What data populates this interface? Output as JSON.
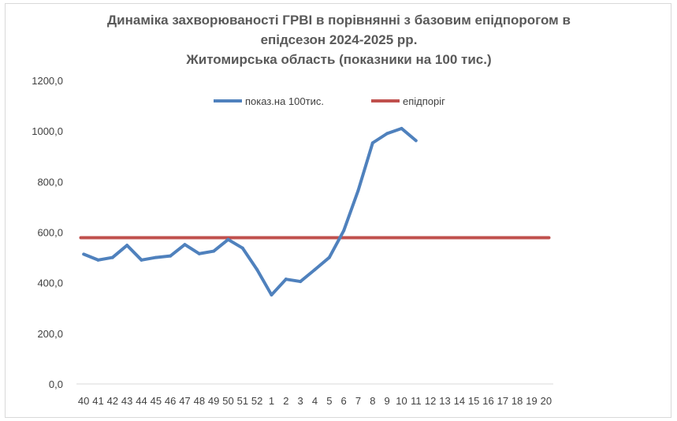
{
  "chart_data": {
    "type": "line",
    "title_lines": [
      "Динаміка захворюваності ГРВІ в порівнянні з базовим епідпорогом в",
      "епідсезон 2024-2025 рр.",
      "Житомирська область (показники на 100 тис.)"
    ],
    "xlabel": "",
    "ylabel": "",
    "categories": [
      "40",
      "41",
      "42",
      "43",
      "44",
      "45",
      "46",
      "47",
      "48",
      "49",
      "50",
      "51",
      "52",
      "1",
      "2",
      "3",
      "4",
      "5",
      "6",
      "7",
      "8",
      "9",
      "10",
      "11",
      "12",
      "13",
      "14",
      "15",
      "16",
      "17",
      "18",
      "19",
      "20"
    ],
    "ylim": [
      0,
      1200
    ],
    "yticks": [
      "0,0",
      "200,0",
      "400,0",
      "600,0",
      "800,0",
      "1000,0",
      "1200,0"
    ],
    "grid": false,
    "legend_position": "top",
    "series": [
      {
        "name": "показ.на 100тис.",
        "color": "#4f81bd",
        "values": [
          513,
          490,
          500,
          548,
          490,
          500,
          506,
          551,
          515,
          525,
          571,
          537,
          452,
          352,
          414,
          405,
          452,
          500,
          606,
          765,
          953,
          990,
          1010,
          962,
          null,
          null,
          null,
          null,
          null,
          null,
          null,
          null,
          null
        ]
      },
      {
        "name": "епідпоріг",
        "color": "#c0504d",
        "values": [
          578,
          578,
          578,
          578,
          578,
          578,
          578,
          578,
          578,
          578,
          578,
          578,
          578,
          578,
          578,
          578,
          578,
          578,
          578,
          578,
          578,
          578,
          578,
          578,
          578,
          578,
          578,
          578,
          578,
          578,
          578,
          578,
          578
        ]
      }
    ]
  }
}
